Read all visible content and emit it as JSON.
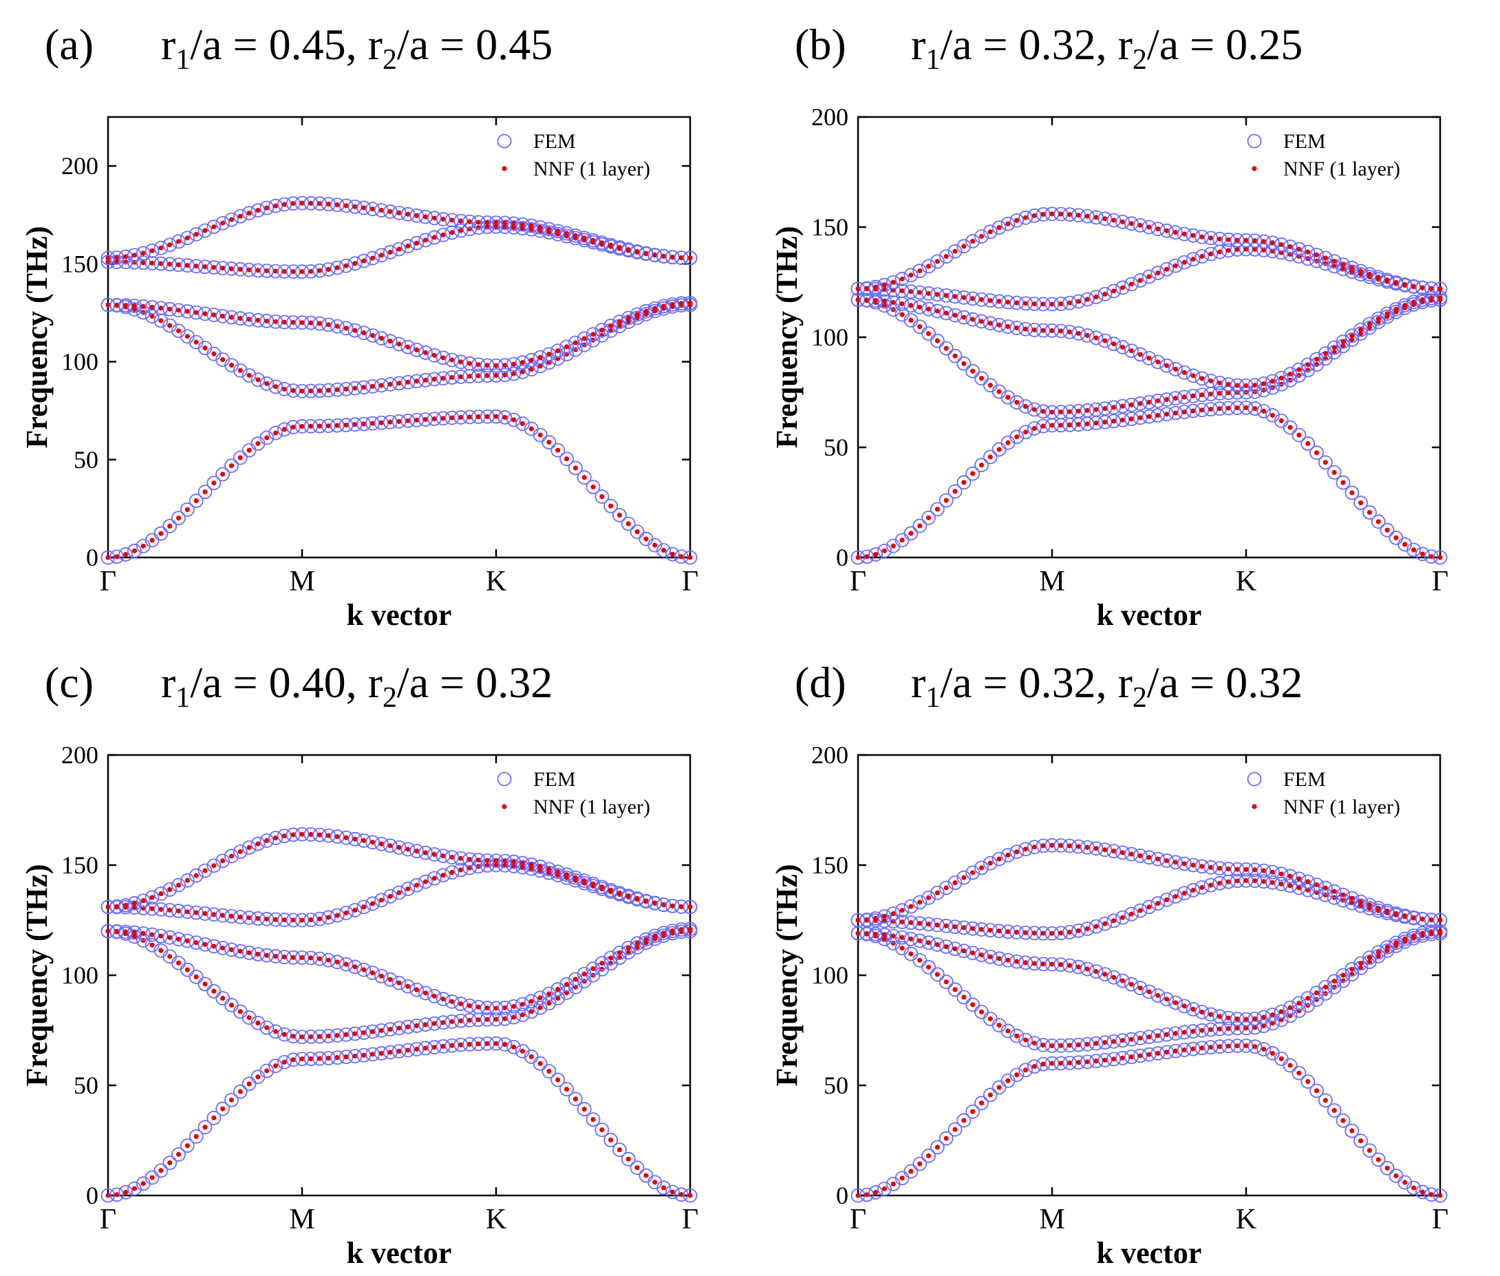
{
  "figure": {
    "legend": {
      "fem": "FEM",
      "nnf": "NNF (1 layer)"
    },
    "colors": {
      "fem": "#6b6bff",
      "nnf": "#e60000",
      "axes": "#000000"
    }
  },
  "chart_data": [
    {
      "type": "scatter",
      "panel": "(a)",
      "title_r1": "0.45",
      "title_r2": "0.45",
      "xlabel": "k vector",
      "ylabel": "Frequency (THz)",
      "x_ticks": [
        "Γ",
        "M",
        "K",
        "Γ"
      ],
      "ylim": [
        0,
        225
      ],
      "y_ticks": [
        0,
        50,
        100,
        150,
        200
      ],
      "legend_placement": "top-right",
      "bands": [
        {
          "G": 0,
          "M": 67,
          "K": 72,
          "G2": 0
        },
        {
          "G": 129,
          "M": 85,
          "K": 93,
          "G2": 129
        },
        {
          "G": 129,
          "M": 120,
          "K": 98,
          "G2": 130
        },
        {
          "G": 151,
          "M": 146,
          "K": 169,
          "G2": 153
        },
        {
          "G": 153,
          "M": 181,
          "K": 171,
          "G2": 153
        }
      ]
    },
    {
      "type": "scatter",
      "panel": "(b)",
      "title_r1": "0.32",
      "title_r2": "0.25",
      "xlabel": "k vector",
      "ylabel": "Frequency (THz)",
      "x_ticks": [
        "Γ",
        "M",
        "K",
        "Γ"
      ],
      "ylim": [
        0,
        200
      ],
      "y_ticks": [
        0,
        50,
        100,
        150,
        200
      ],
      "legend_placement": "top-right",
      "bands": [
        {
          "G": 0,
          "M": 60,
          "K": 68,
          "G2": 0
        },
        {
          "G": 117,
          "M": 66,
          "K": 75,
          "G2": 117
        },
        {
          "G": 117,
          "M": 103,
          "K": 78,
          "G2": 118
        },
        {
          "G": 122,
          "M": 115,
          "K": 140,
          "G2": 122
        },
        {
          "G": 122,
          "M": 156,
          "K": 144,
          "G2": 122
        }
      ]
    },
    {
      "type": "scatter",
      "panel": "(c)",
      "title_r1": "0.40",
      "title_r2": "0.32",
      "xlabel": "k vector",
      "ylabel": "Frequency (THz)",
      "x_ticks": [
        "Γ",
        "M",
        "K",
        "Γ"
      ],
      "ylim": [
        0,
        200
      ],
      "y_ticks": [
        0,
        50,
        100,
        150,
        200
      ],
      "legend_placement": "top-right",
      "bands": [
        {
          "G": 0,
          "M": 62,
          "K": 69,
          "G2": 0
        },
        {
          "G": 120,
          "M": 72,
          "K": 80,
          "G2": 120
        },
        {
          "G": 120,
          "M": 108,
          "K": 85,
          "G2": 121
        },
        {
          "G": 131,
          "M": 125,
          "K": 150,
          "G2": 131
        },
        {
          "G": 131,
          "M": 164,
          "K": 152,
          "G2": 131
        }
      ]
    },
    {
      "type": "scatter",
      "panel": "(d)",
      "title_r1": "0.32",
      "title_r2": "0.32",
      "xlabel": "k vector",
      "ylabel": "Frequency (THz)",
      "x_ticks": [
        "Γ",
        "M",
        "K",
        "Γ"
      ],
      "ylim": [
        0,
        200
      ],
      "y_ticks": [
        0,
        50,
        100,
        150,
        200
      ],
      "legend_placement": "top-right",
      "bands": [
        {
          "G": 0,
          "M": 60,
          "K": 68,
          "G2": 0
        },
        {
          "G": 119,
          "M": 68,
          "K": 76,
          "G2": 119
        },
        {
          "G": 119,
          "M": 105,
          "K": 80,
          "G2": 120
        },
        {
          "G": 125,
          "M": 119,
          "K": 143,
          "G2": 125
        },
        {
          "G": 125,
          "M": 159,
          "K": 148,
          "G2": 125
        }
      ]
    }
  ]
}
